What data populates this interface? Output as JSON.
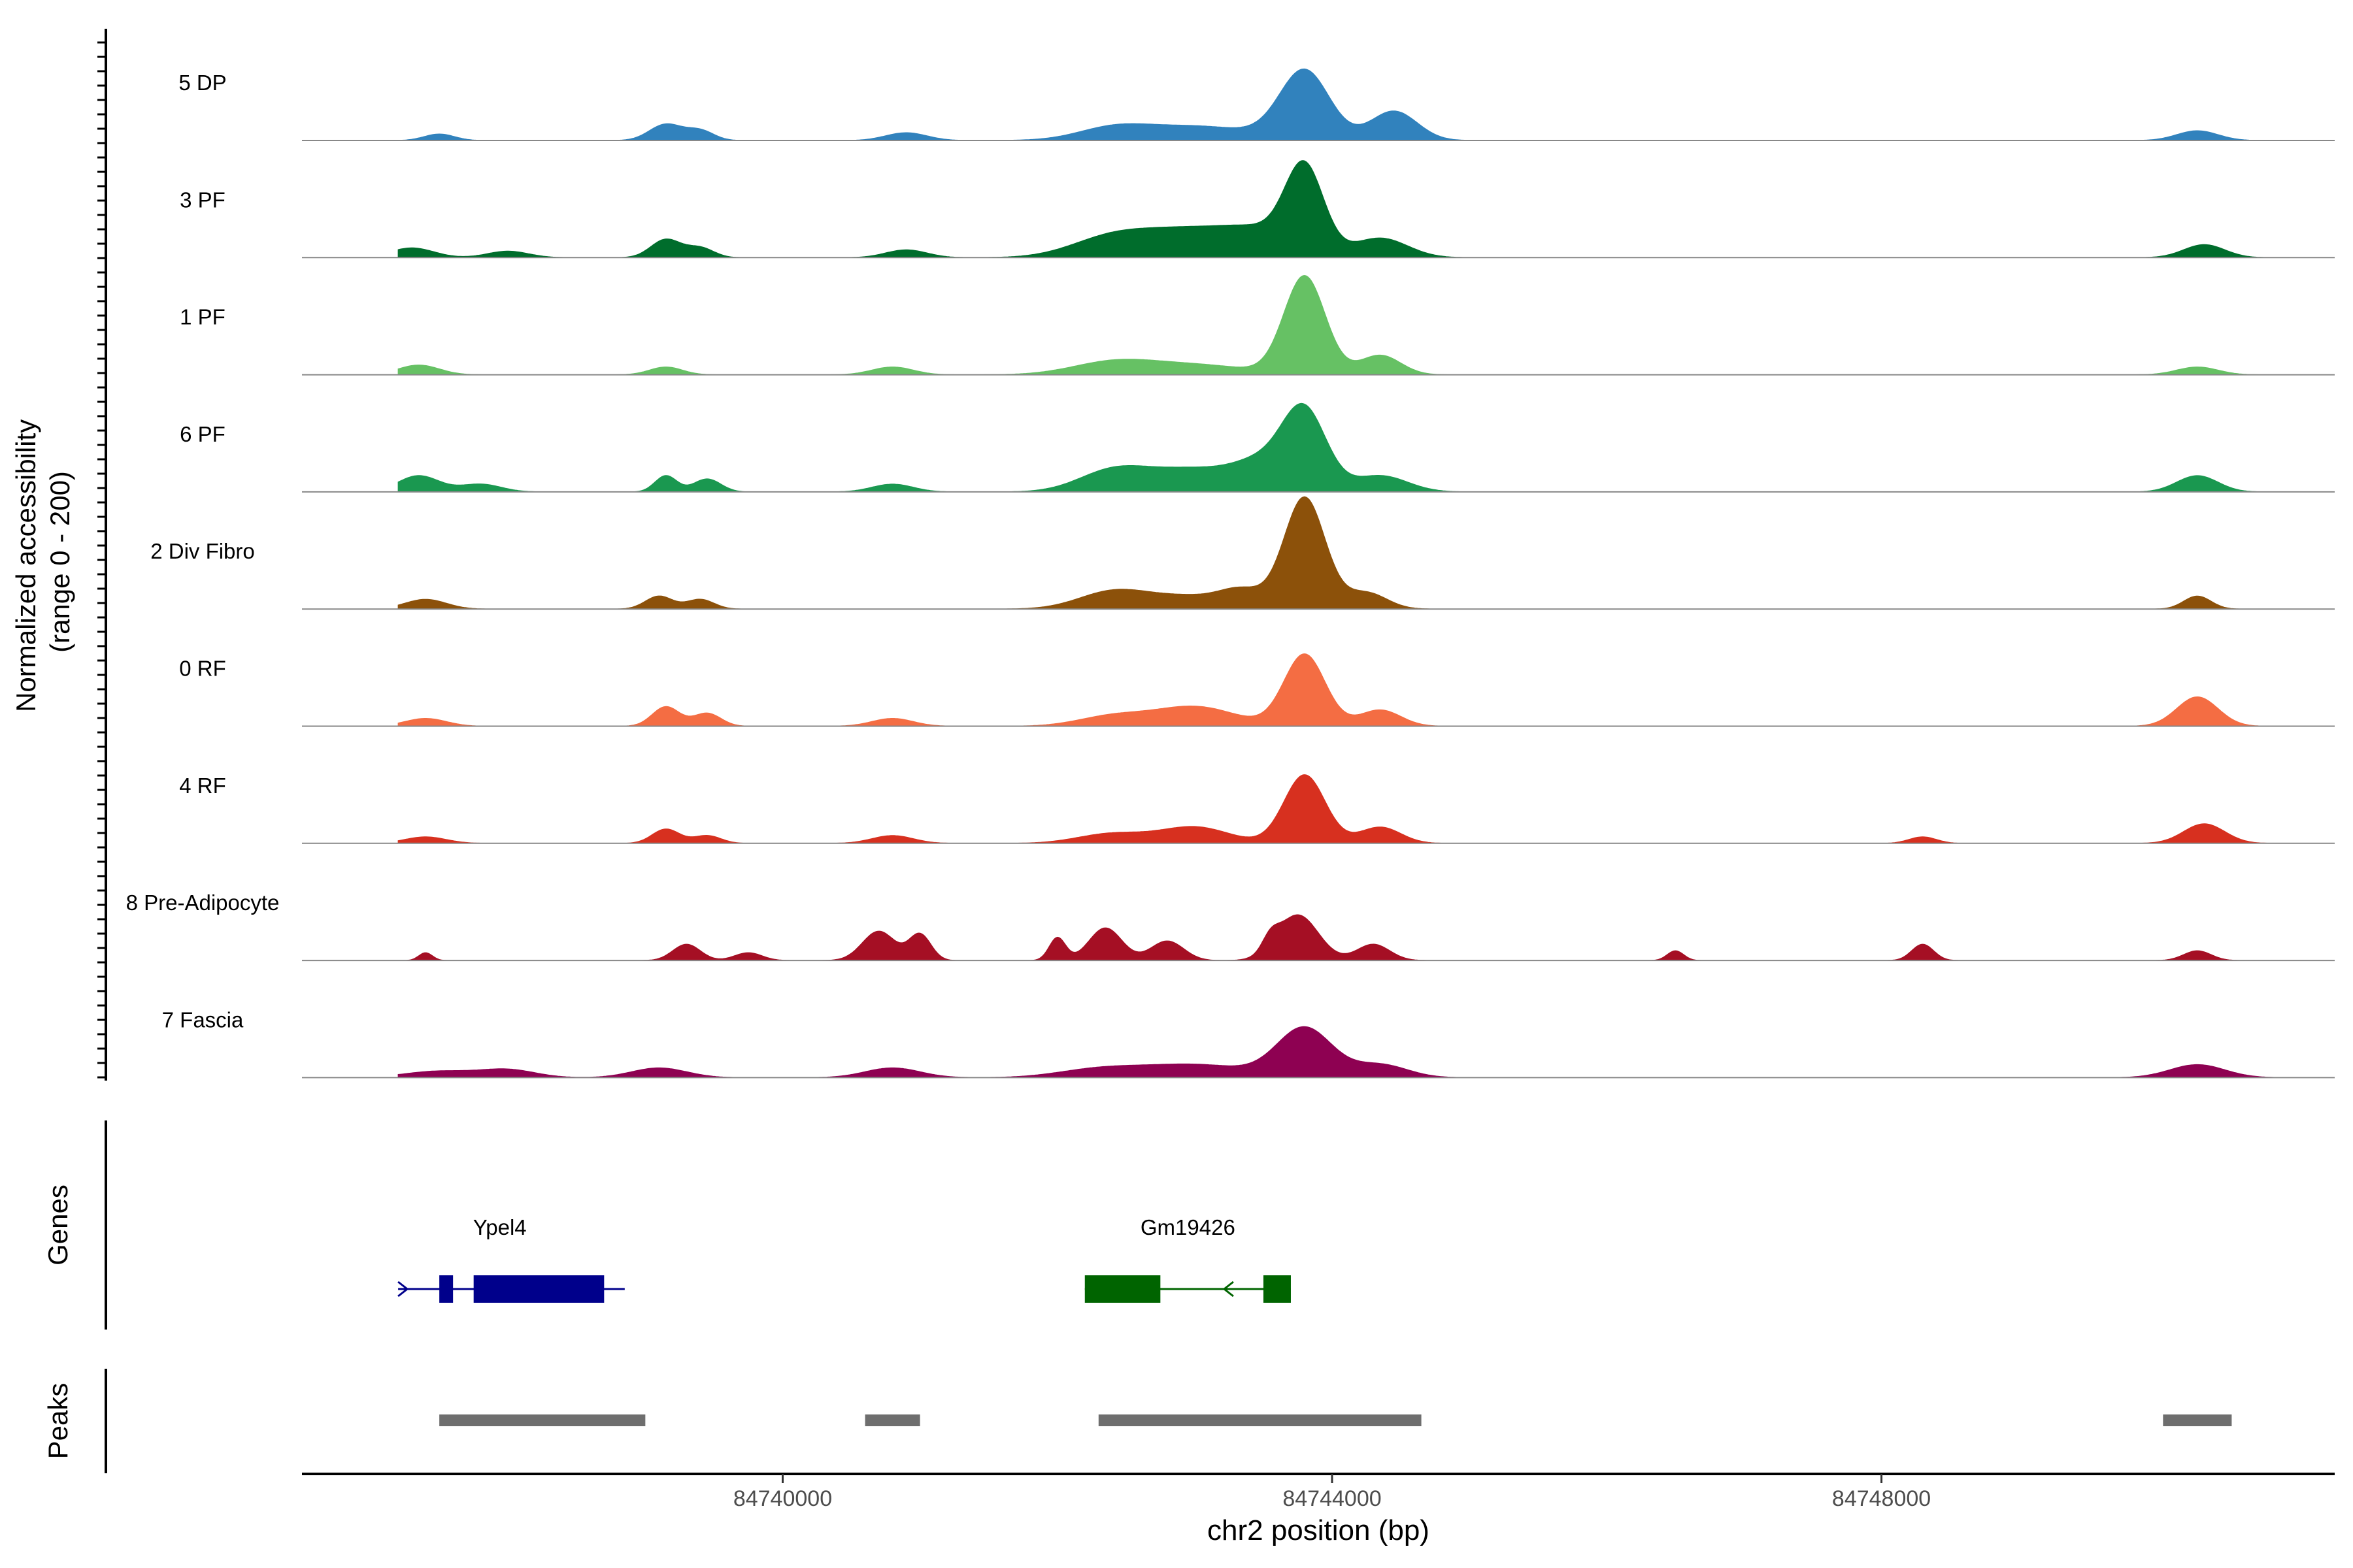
{
  "chart_data": {
    "type": "area",
    "xlabel": "chr2 position (bp)",
    "ylabel_line1": "Normalized accessibility",
    "ylabel_line2": "(range 0 - 200)",
    "ylim": [
      0,
      200
    ],
    "xlim": [
      84736500,
      84751300
    ],
    "x_ticks": [
      84740000,
      84744000,
      84748000
    ],
    "x_tick_labels": [
      "84740000",
      "84744000",
      "84748000"
    ],
    "tracks": [
      {
        "name": "5 DP",
        "color": "#3182bd",
        "peaks": [
          [
            84737500,
            10,
            110
          ],
          [
            84739150,
            25,
            120
          ],
          [
            84739400,
            15,
            100
          ],
          [
            84740900,
            12,
            150
          ],
          [
            84742400,
            15,
            250
          ],
          [
            84743000,
            22,
            450
          ],
          [
            84743800,
            105,
            180
          ],
          [
            84744450,
            45,
            170
          ],
          [
            84750300,
            15,
            150
          ]
        ]
      },
      {
        "name": "3 PF",
        "color": "#006d2c",
        "peaks": [
          [
            84737300,
            15,
            160
          ],
          [
            84738000,
            10,
            150
          ],
          [
            84739150,
            28,
            110
          ],
          [
            84739400,
            15,
            100
          ],
          [
            84740900,
            12,
            150
          ],
          [
            84742400,
            30,
            300
          ],
          [
            84743000,
            40,
            350
          ],
          [
            84743500,
            30,
            250
          ],
          [
            84743800,
            130,
            140
          ],
          [
            84744350,
            30,
            200
          ],
          [
            84750350,
            20,
            150
          ]
        ]
      },
      {
        "name": "1 PF",
        "color": "#66c164",
        "peaks": [
          [
            84737350,
            15,
            150
          ],
          [
            84739150,
            12,
            120
          ],
          [
            84740800,
            12,
            150
          ],
          [
            84742400,
            18,
            300
          ],
          [
            84743000,
            15,
            400
          ],
          [
            84743800,
            150,
            150
          ],
          [
            84744350,
            30,
            150
          ],
          [
            84750300,
            12,
            150
          ]
        ]
      },
      {
        "name": "6 PF",
        "color": "#1a9850",
        "peaks": [
          [
            84737350,
            25,
            150
          ],
          [
            84737800,
            12,
            150
          ],
          [
            84739150,
            25,
            80
          ],
          [
            84739450,
            20,
            100
          ],
          [
            84740800,
            12,
            150
          ],
          [
            84742400,
            30,
            250
          ],
          [
            84743000,
            35,
            350
          ],
          [
            84743500,
            35,
            200
          ],
          [
            84743800,
            120,
            160
          ],
          [
            84744350,
            25,
            200
          ],
          [
            84750300,
            25,
            150
          ]
        ]
      },
      {
        "name": "2 Div Fibro",
        "color": "#8c510a",
        "peaks": [
          [
            84737400,
            15,
            150
          ],
          [
            84739100,
            20,
            100
          ],
          [
            84739400,
            15,
            100
          ],
          [
            84742400,
            25,
            250
          ],
          [
            84743000,
            20,
            350
          ],
          [
            84743350,
            20,
            150
          ],
          [
            84743800,
            170,
            150
          ],
          [
            84744250,
            25,
            150
          ],
          [
            84750300,
            20,
            100
          ]
        ]
      },
      {
        "name": "0 RF",
        "color": "#f46d43",
        "peaks": [
          [
            84737400,
            12,
            150
          ],
          [
            84739150,
            30,
            100
          ],
          [
            84739450,
            20,
            100
          ],
          [
            84740800,
            12,
            150
          ],
          [
            84742400,
            15,
            250
          ],
          [
            84743000,
            30,
            300
          ],
          [
            84743800,
            110,
            150
          ],
          [
            84744350,
            25,
            150
          ],
          [
            84750300,
            45,
            150
          ]
        ]
      },
      {
        "name": "4 RF",
        "color": "#d7301f",
        "peaks": [
          [
            84737400,
            10,
            150
          ],
          [
            84739150,
            22,
            100
          ],
          [
            84739450,
            12,
            100
          ],
          [
            84740800,
            12,
            150
          ],
          [
            84742400,
            15,
            250
          ],
          [
            84743000,
            25,
            250
          ],
          [
            84743800,
            105,
            150
          ],
          [
            84744350,
            25,
            150
          ],
          [
            84748300,
            10,
            100
          ],
          [
            84750350,
            30,
            150
          ]
        ]
      },
      {
        "name": "8 Pre-Adipocyte",
        "color": "#a50f24",
        "peaks": [
          [
            84737400,
            12,
            50
          ],
          [
            84739300,
            25,
            100
          ],
          [
            84739750,
            12,
            100
          ],
          [
            84740700,
            45,
            120
          ],
          [
            84741000,
            40,
            80
          ],
          [
            84742000,
            35,
            60
          ],
          [
            84742350,
            50,
            120
          ],
          [
            84742800,
            30,
            120
          ],
          [
            84743550,
            20,
            60
          ],
          [
            84743750,
            70,
            150
          ],
          [
            84744300,
            25,
            120
          ],
          [
            84746500,
            15,
            60
          ],
          [
            84748300,
            25,
            80
          ],
          [
            84750300,
            15,
            100
          ]
        ]
      },
      {
        "name": "7 Fascia",
        "color": "#8e0152",
        "peaks": [
          [
            84737500,
            10,
            250
          ],
          [
            84738000,
            12,
            200
          ],
          [
            84739100,
            15,
            200
          ],
          [
            84740800,
            15,
            200
          ],
          [
            84742300,
            12,
            300
          ],
          [
            84743000,
            20,
            400
          ],
          [
            84743800,
            75,
            200
          ],
          [
            84744350,
            20,
            200
          ],
          [
            84750300,
            20,
            200
          ]
        ]
      }
    ],
    "genes": [
      {
        "name": "Ypel4",
        "color": "#00008b",
        "strand": "+",
        "start": 84737200,
        "end": 84738850,
        "exons": [
          [
            84737500,
            84737600
          ],
          [
            84737750,
            84738700
          ]
        ]
      },
      {
        "name": "Gm19426",
        "color": "#006400",
        "strand": "-",
        "start": 84742200,
        "end": 84743700,
        "exons": [
          [
            84742200,
            84742750
          ],
          [
            84743500,
            84743700
          ]
        ]
      }
    ],
    "peak_regions": [
      [
        84737500,
        84739000
      ],
      [
        84740600,
        84741000
      ],
      [
        84742300,
        84744650
      ],
      [
        84750050,
        84750550
      ]
    ]
  },
  "panels": {
    "genes_label": "Genes",
    "peaks_label": "Peaks"
  }
}
